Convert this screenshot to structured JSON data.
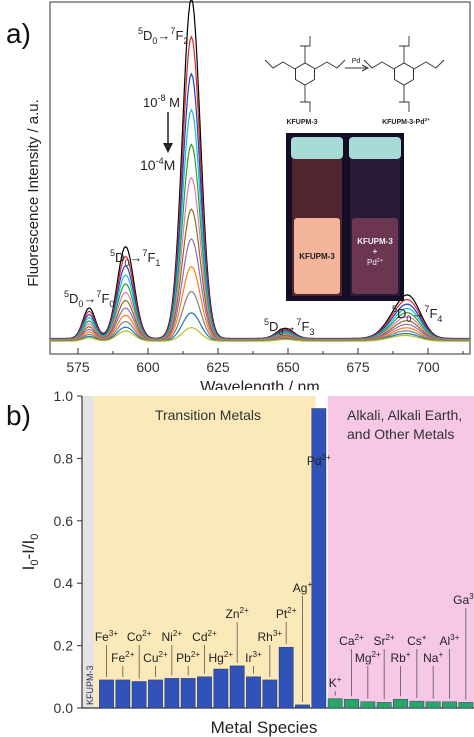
{
  "panel_a": {
    "letter": "a)",
    "chart_data": {
      "type": "line",
      "xlabel": "Wavelength / nm",
      "ylabel": "Fluorescence Intensity / a.u.",
      "xlim": [
        565,
        715
      ],
      "x_ticks": [
        575,
        600,
        625,
        650,
        675,
        700
      ],
      "series_count": 12,
      "series_colors": [
        "#000000",
        "#d62728",
        "#1f3fbf",
        "#17becf",
        "#2ca02c",
        "#e377c2",
        "#8c6d1f",
        "#9467bd",
        "#ff7f0e",
        "#7f7f7f",
        "#1f77b4",
        "#bcbd22"
      ],
      "peaks": [
        {
          "center": 579,
          "width": 2.2,
          "max": 0.09,
          "min": 0.01
        },
        {
          "center": 592,
          "width": 3.0,
          "max": 0.27,
          "min": 0.03
        },
        {
          "center": 615.5,
          "width": 3.2,
          "max": 1.0,
          "min": 0.04
        },
        {
          "center": 649,
          "width": 3.0,
          "max": 0.03,
          "min": 0.005
        },
        {
          "center": 689,
          "width": 4.5,
          "max": 0.06,
          "min": 0.01
        },
        {
          "center": 694,
          "width": 4.0,
          "max": 0.09,
          "min": 0.01
        }
      ],
      "peak_labels": [
        {
          "text": "5D0→7F0",
          "level": "F0"
        },
        {
          "text": "5D0→7F1",
          "level": "F1"
        },
        {
          "text": "5D0→7F2",
          "level": "F2"
        },
        {
          "text": "5D0→7F3",
          "level": "F3"
        },
        {
          "text": "5D0→7F4",
          "level": "F4"
        }
      ],
      "concentration_high": "10-8 M",
      "concentration_low": "10-4 M"
    },
    "inset": {
      "compound_left": "KFUPM-3",
      "compound_right": "KFUPM-3-Pd2+",
      "reagent": "Pd",
      "vial_left_label": "KFUPM-3",
      "vial_right_label_1": "KFUPM-3",
      "vial_right_label_2": "+",
      "vial_right_label_3": "Pd2+"
    }
  },
  "panel_b": {
    "letter": "b)",
    "chart_data": {
      "type": "bar",
      "xlabel": "Metal Species",
      "ylabel": "I0-I/I0",
      "ylim": [
        0,
        1.0
      ],
      "y_ticks": [
        0.0,
        0.2,
        0.4,
        0.6,
        0.8,
        1.0
      ],
      "regions": [
        {
          "label": "Transition Metals",
          "color": "#fbe9b9"
        },
        {
          "label": "Alkali, Alkali Earth, and Other Metals",
          "color": "#f6c8e6"
        }
      ],
      "categories": [
        "KFUPM-3",
        "Fe3+",
        "Fe2+",
        "Co2+",
        "Cu2+",
        "Ni2+",
        "Pb2+",
        "Cd2+",
        "Hg2+",
        "Zn2+",
        "Ir3+",
        "Rh3+",
        "Pt2+",
        "Ag+",
        "Pd2+",
        "K+",
        "Ca2+",
        "Mg2+",
        "Sr2+",
        "Rb+",
        "Cs+",
        "Na+",
        "Al3+",
        "Ga3+"
      ],
      "values": [
        0,
        0.09,
        0.09,
        0.085,
        0.09,
        0.095,
        0.095,
        0.1,
        0.125,
        0.135,
        0.1,
        0.09,
        0.195,
        0.01,
        0.96,
        0.03,
        0.028,
        0.02,
        0.018,
        0.028,
        0.022,
        0.02,
        0.02,
        0.018
      ],
      "transition_color": "#3153b8",
      "other_color": "#2aa56a"
    }
  }
}
